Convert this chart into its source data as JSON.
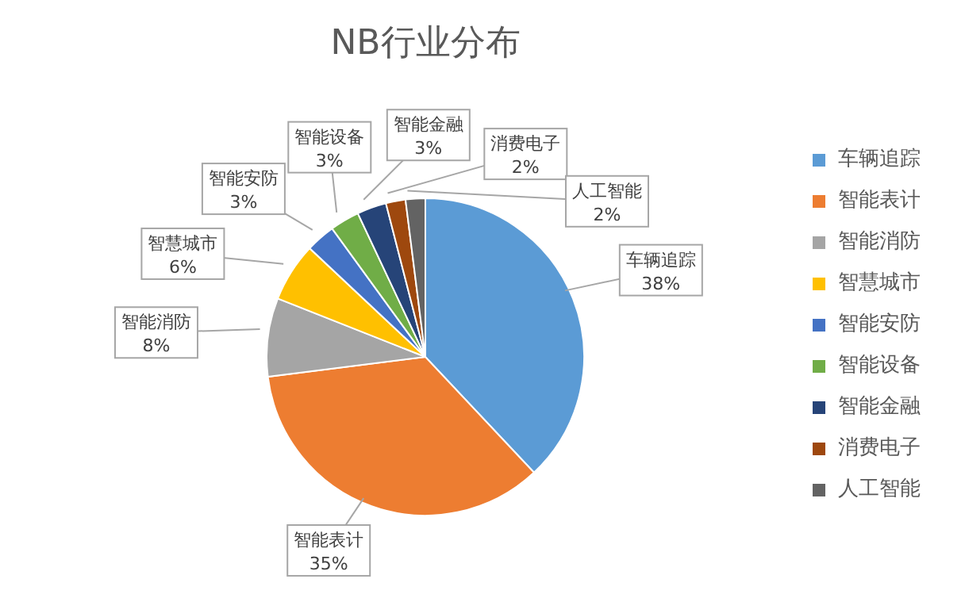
{
  "chart_data": {
    "type": "pie",
    "title": "NB行业分布",
    "categories": [
      "车辆追踪",
      "智能表计",
      "智能消防",
      "智慧城市",
      "智能安防",
      "智能设备",
      "智能金融",
      "消费电子",
      "人工智能"
    ],
    "values": [
      38,
      35,
      8,
      6,
      3,
      3,
      3,
      2,
      2
    ],
    "value_labels": [
      "38%",
      "35%",
      "8%",
      "6%",
      "3%",
      "3%",
      "3%",
      "2%",
      "2%"
    ],
    "colors": [
      "#5b9bd5",
      "#ed7d31",
      "#a5a5a5",
      "#ffc000",
      "#4472c4",
      "#70ad47",
      "#264478",
      "#9e480e",
      "#636363"
    ],
    "legend": "right"
  }
}
